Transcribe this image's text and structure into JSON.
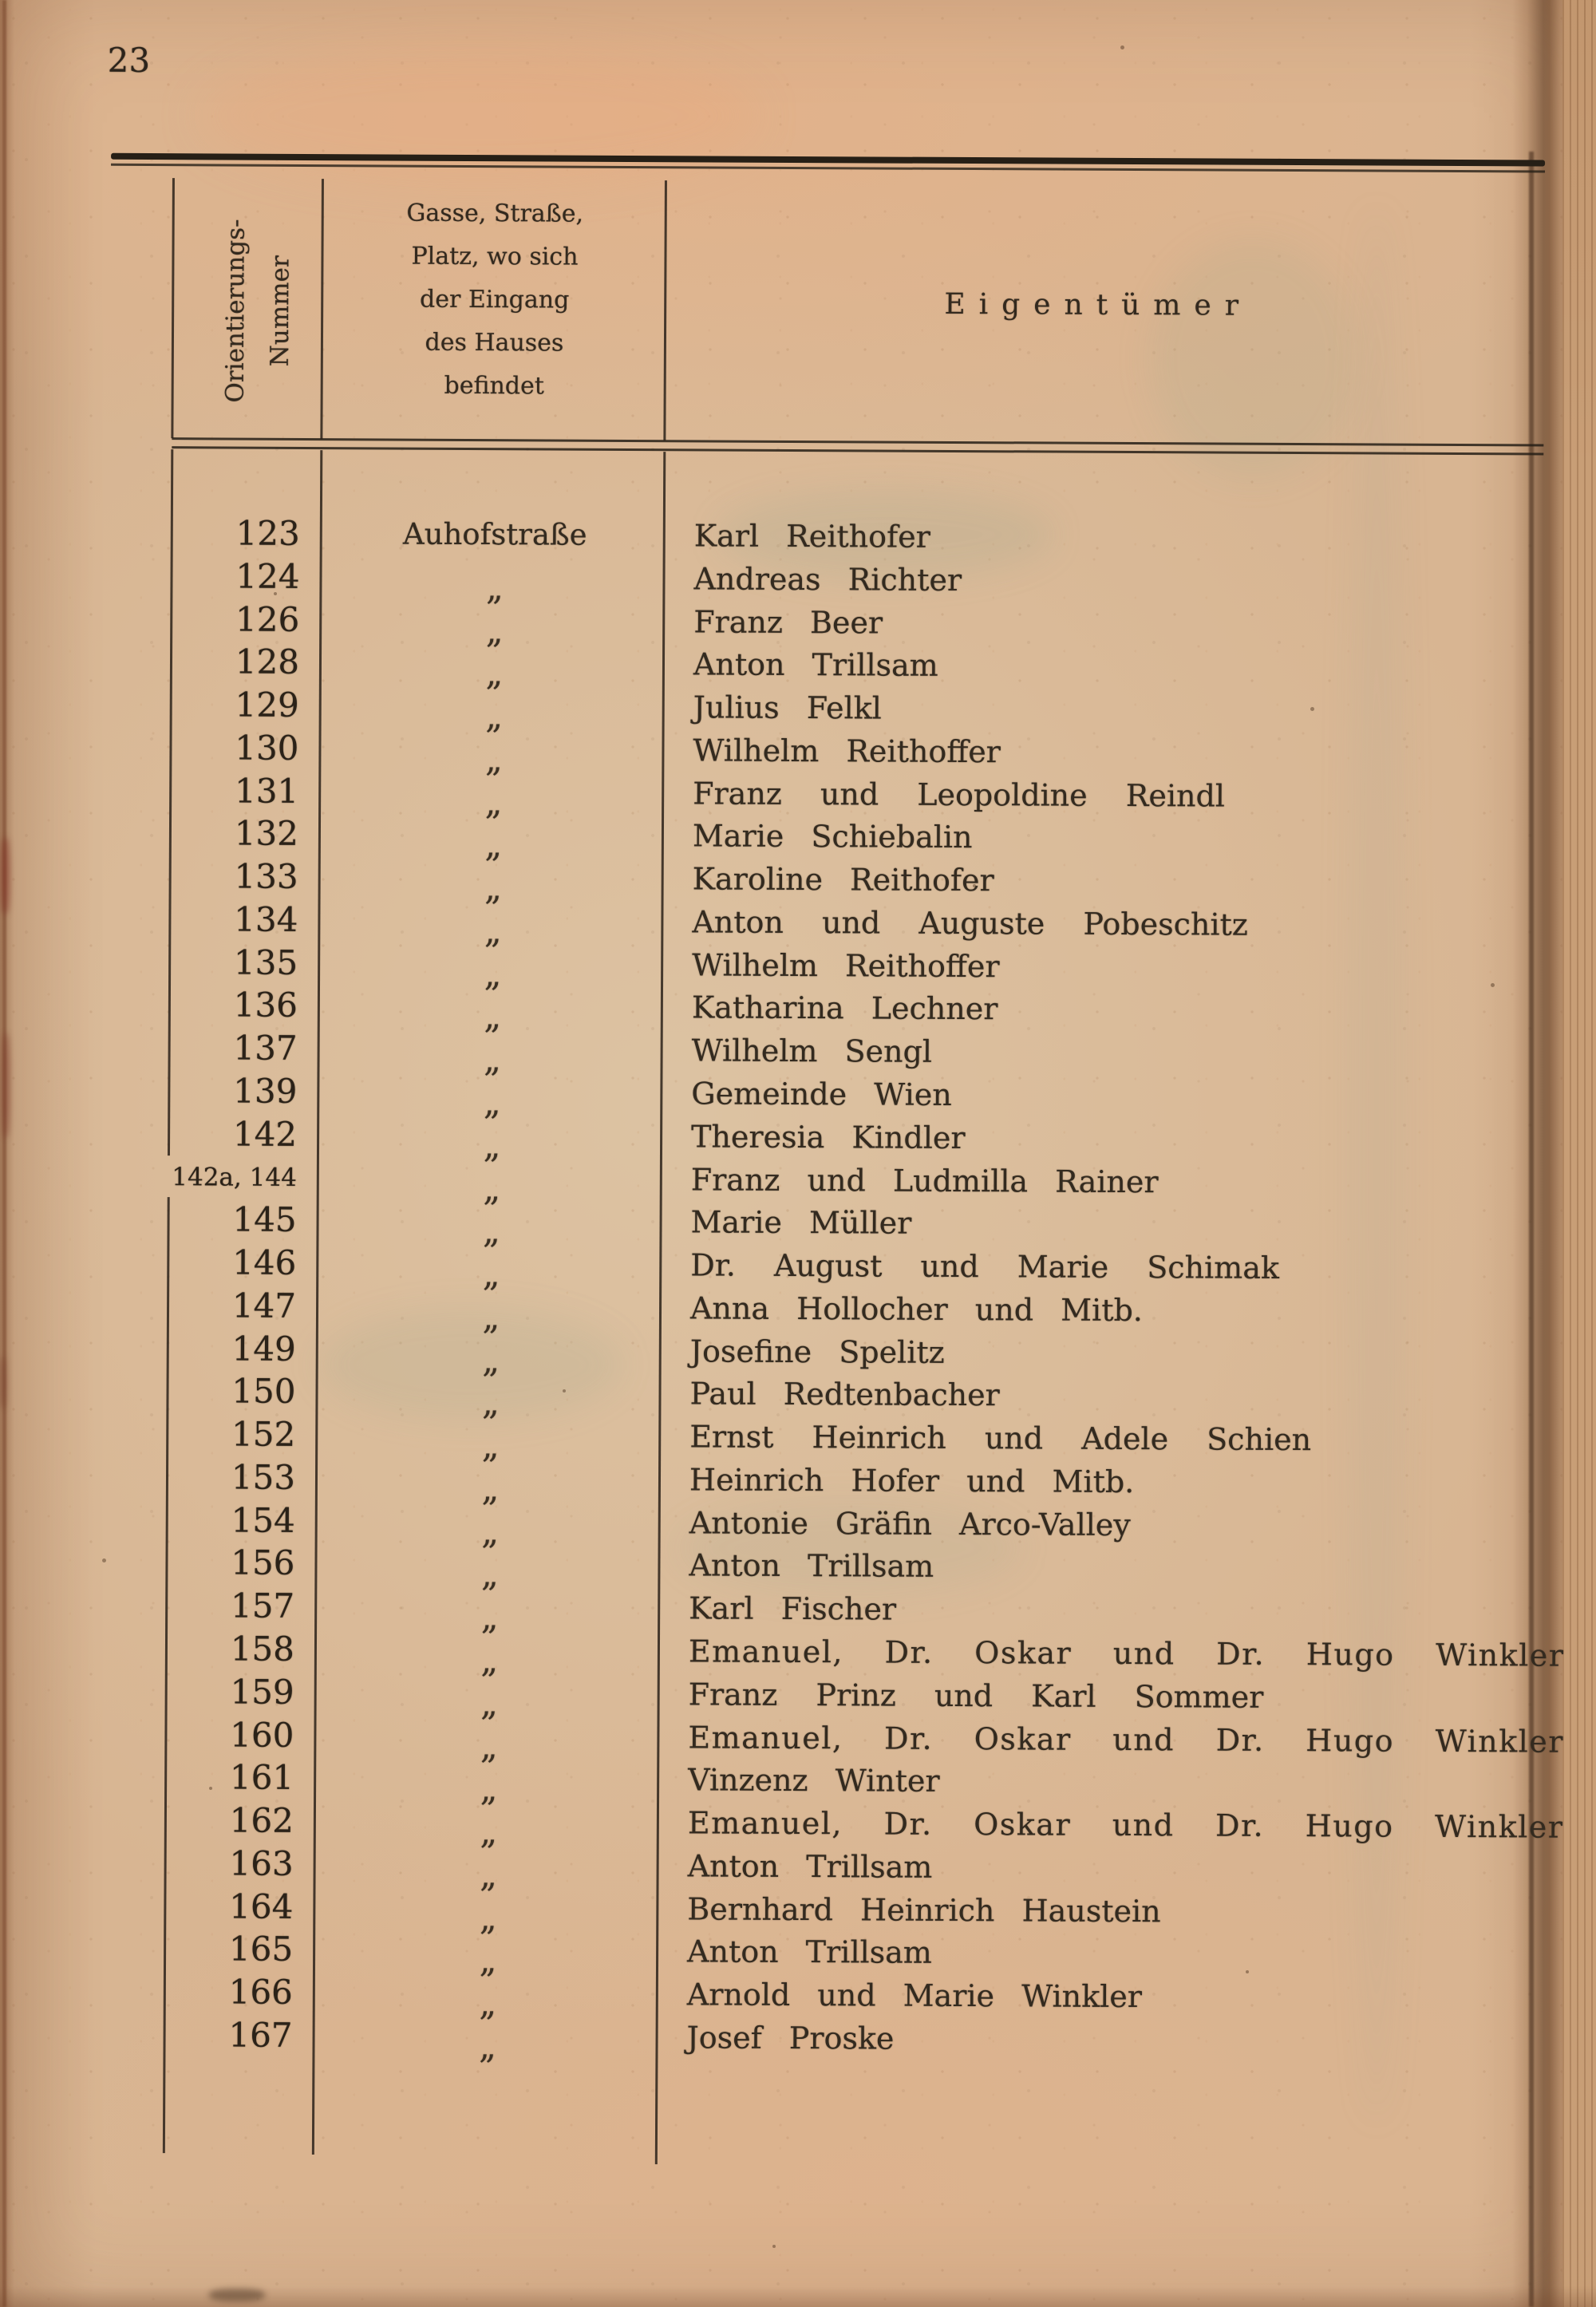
{
  "page": {
    "number": "23"
  },
  "table": {
    "header": {
      "col1_lines": [
        "Orientierungs-",
        "Nummer"
      ],
      "col2_lines": [
        "Gasse, Straße,",
        "Platz, wo sich",
        "der Eingang",
        "des Hauses",
        "befindet"
      ],
      "col3": "Eigentümer"
    },
    "ditto_mark": "„",
    "rows": [
      {
        "number": "123",
        "street": "Auhofstraße",
        "owner": "Karl Reithofer"
      },
      {
        "number": "124",
        "street": "„",
        "owner": "Andreas Richter"
      },
      {
        "number": "126",
        "street": "„",
        "owner": "Franz Beer"
      },
      {
        "number": "128",
        "street": "„",
        "owner": "Anton Trillsam"
      },
      {
        "number": "129",
        "street": "„",
        "owner": "Julius Felkl"
      },
      {
        "number": "130",
        "street": "„",
        "owner": "Wilhelm Reithoffer"
      },
      {
        "number": "131",
        "street": "„",
        "owner": "Franz und Leopoldine Reindl"
      },
      {
        "number": "132",
        "street": "„",
        "owner": "Marie Schiebalin"
      },
      {
        "number": "133",
        "street": "„",
        "owner": "Karoline Reithofer"
      },
      {
        "number": "134",
        "street": "„",
        "owner": "Anton und Auguste Pobeschitz"
      },
      {
        "number": "135",
        "street": "„",
        "owner": "Wilhelm Reithoffer"
      },
      {
        "number": "136",
        "street": "„",
        "owner": "Katharina Lechner"
      },
      {
        "number": "137",
        "street": "„",
        "owner": "Wilhelm Sengl"
      },
      {
        "number": "139",
        "street": "„",
        "owner": "Gemeinde Wien"
      },
      {
        "number": "142",
        "street": "„",
        "owner": "Theresia Kindler"
      },
      {
        "number": "142a, 144",
        "street": "„",
        "owner": "Franz und Ludmilla Rainer"
      },
      {
        "number": "145",
        "street": "„",
        "owner": "Marie Müller"
      },
      {
        "number": "146",
        "street": "„",
        "owner": "Dr. August und Marie Schimak"
      },
      {
        "number": "147",
        "street": "„",
        "owner": "Anna Hollocher und Mitb."
      },
      {
        "number": "149",
        "street": "„",
        "owner": "Josefine Spelitz"
      },
      {
        "number": "150",
        "street": "„",
        "owner": "Paul Redtenbacher"
      },
      {
        "number": "152",
        "street": "„",
        "owner": "Ernst Heinrich und Adele Schien"
      },
      {
        "number": "153",
        "street": "„",
        "owner": "Heinrich Hofer und Mitb."
      },
      {
        "number": "154",
        "street": "„",
        "owner": "Antonie Gräfin Arco-Valley"
      },
      {
        "number": "156",
        "street": "„",
        "owner": "Anton Trillsam"
      },
      {
        "number": "157",
        "street": "„",
        "owner": "Karl Fischer"
      },
      {
        "number": "158",
        "street": "„",
        "owner": "Emanuel, Dr. Oskar und Dr. Hugo Winkler"
      },
      {
        "number": "159",
        "street": "„",
        "owner": "Franz Prinz und Karl Sommer"
      },
      {
        "number": "160",
        "street": "„",
        "owner": "Emanuel, Dr. Oskar und Dr. Hugo Winkler"
      },
      {
        "number": "161",
        "street": "„",
        "owner": "Vinzenz Winter"
      },
      {
        "number": "162",
        "street": "„",
        "owner": "Emanuel, Dr. Oskar und Dr. Hugo Winkler"
      },
      {
        "number": "163",
        "street": "„",
        "owner": "Anton Trillsam"
      },
      {
        "number": "164",
        "street": "„",
        "owner": "Bernhard Heinrich Haustein"
      },
      {
        "number": "165",
        "street": "„",
        "owner": "Anton Trillsam"
      },
      {
        "number": "166",
        "street": "„",
        "owner": "Arnold und Marie Winkler"
      },
      {
        "number": "167",
        "street": "„",
        "owner": "Josef Proske"
      }
    ]
  },
  "colors": {
    "paper": "#d8b592",
    "paper_top": "#e0b28c",
    "paper_body": "#d8c2a2",
    "ink": "#332a1f",
    "rule": "#261f16",
    "fold_shadow": "#5c3a1c",
    "edge_strip": "#c59a72"
  }
}
